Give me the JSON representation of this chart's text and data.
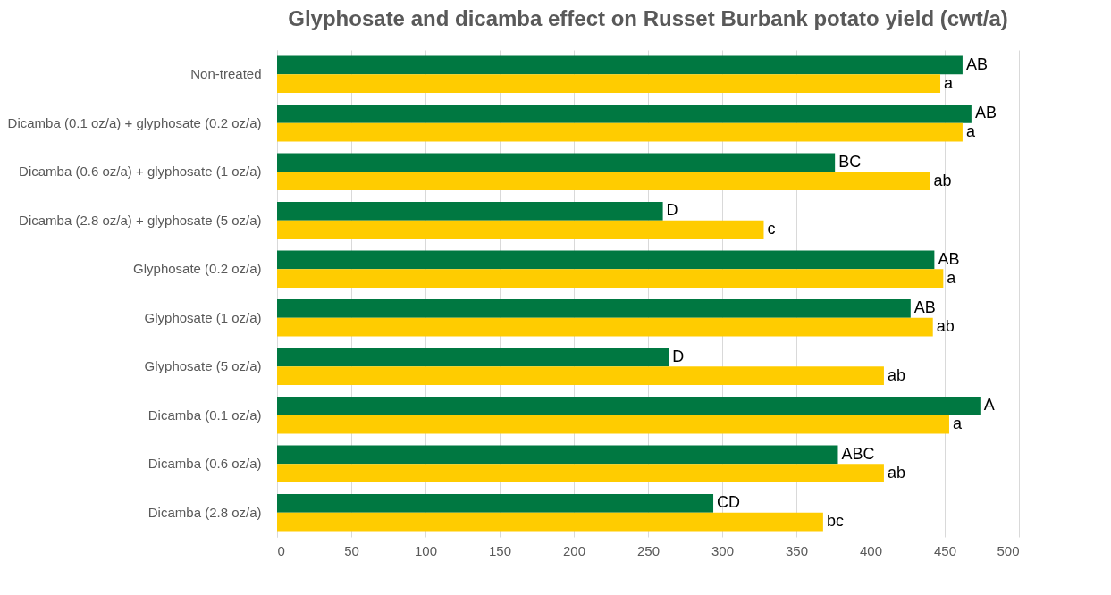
{
  "chart_data": {
    "type": "bar",
    "orientation": "horizontal",
    "title": "Glyphosate and dicamba effect on Russet Burbank potato yield (cwt/a)",
    "categories": [
      "Non-treated",
      "Dicamba (0.1 oz/a) + glyphosate (0.2 oz/a)",
      "Dicamba (0.6 oz/a) + glyphosate (1 oz/a)",
      "Dicamba (2.8 oz/a) + glyphosate (5 oz/a)",
      "Glyphosate (0.2 oz/a)",
      "Glyphosate (1 oz/a)",
      "Glyphosate (5 oz/a)",
      "Dicamba (0.1 oz/a)",
      "Dicamba (0.6 oz/a)",
      "Dicamba (2.8 oz/a)"
    ],
    "series": [
      {
        "color": "#007841",
        "values": [
          462,
          468,
          376,
          260,
          443,
          427,
          264,
          474,
          378,
          294
        ],
        "value_labels": [
          "AB",
          "AB",
          "BC",
          "D",
          "AB",
          "AB",
          "D",
          "A",
          "ABC",
          "CD"
        ]
      },
      {
        "color": "#ffcc00",
        "values": [
          447,
          462,
          440,
          328,
          449,
          442,
          409,
          453,
          409,
          368
        ],
        "value_labels": [
          "a",
          "a",
          "ab",
          "c",
          "a",
          "ab",
          "ab",
          "a",
          "ab",
          "bc"
        ]
      }
    ],
    "xlim": [
      0,
      500
    ],
    "xticks": [
      0,
      50,
      100,
      150,
      200,
      250,
      300,
      350,
      400,
      450,
      500
    ],
    "grid": "x",
    "legend": false
  }
}
